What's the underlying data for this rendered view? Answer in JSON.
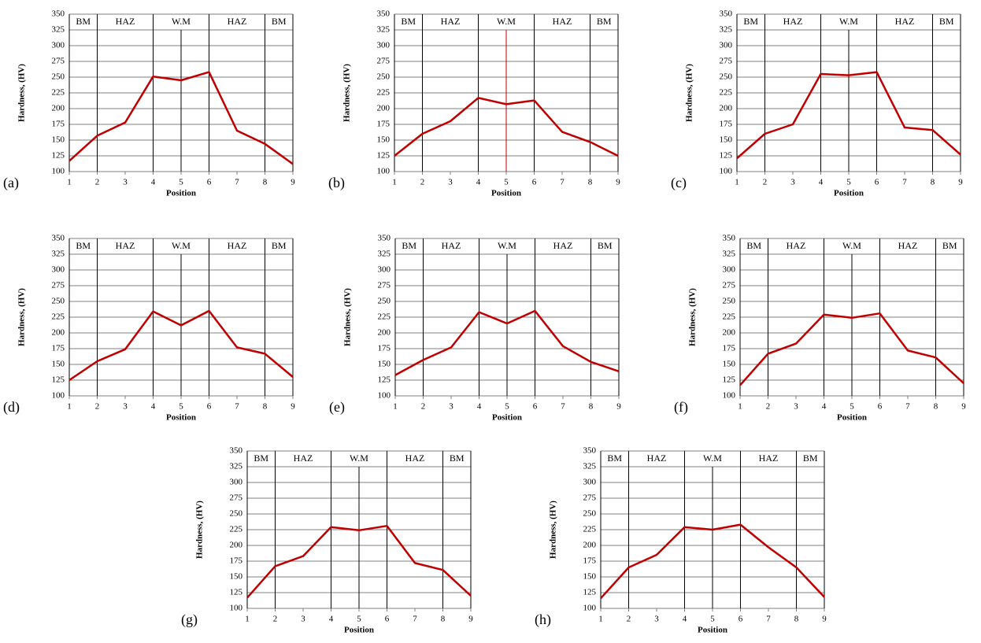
{
  "chart_data": [
    {
      "type": "line",
      "panel_label": "(a)",
      "x": [
        1,
        2,
        3,
        4,
        5,
        6,
        7,
        8,
        9
      ],
      "xlim": [
        1,
        9
      ],
      "xticks": [
        1,
        2,
        3,
        4,
        5,
        6,
        7,
        8,
        9
      ],
      "ylim": [
        100,
        350
      ],
      "yticks": [
        100,
        125,
        150,
        175,
        200,
        225,
        250,
        275,
        300,
        325,
        350
      ],
      "grid": true,
      "x_label": "Position",
      "y_label": "Hardness, (HV)",
      "series": [
        {
          "color": "#c00000",
          "values": [
            117,
            157,
            178,
            251,
            245,
            258,
            165,
            144,
            112
          ]
        }
      ],
      "regions": [
        {
          "label": "BM",
          "from": 1,
          "to": 2
        },
        {
          "label": "HAZ",
          "from": 2,
          "to": 4
        },
        {
          "label": "W.M",
          "from": 4,
          "to": 6
        },
        {
          "label": "HAZ",
          "from": 6,
          "to": 8
        },
        {
          "label": "BM",
          "from": 8,
          "to": 9
        }
      ],
      "center_line": {
        "x": 5,
        "color": "#000000"
      }
    },
    {
      "type": "line",
      "panel_label": "(b)",
      "x": [
        1,
        2,
        3,
        4,
        5,
        6,
        7,
        8,
        9
      ],
      "xlim": [
        1,
        9
      ],
      "xticks": [
        1,
        2,
        3,
        4,
        5,
        6,
        7,
        8,
        9
      ],
      "ylim": [
        100,
        350
      ],
      "yticks": [
        100,
        125,
        150,
        175,
        200,
        225,
        250,
        275,
        300,
        325,
        350
      ],
      "grid": true,
      "x_label": "Position",
      "y_label": "Hardness, (HV)",
      "series": [
        {
          "color": "#c00000",
          "values": [
            125,
            160,
            180,
            217,
            207,
            213,
            163,
            147,
            125
          ]
        }
      ],
      "regions": [
        {
          "label": "BM",
          "from": 1,
          "to": 2
        },
        {
          "label": "HAZ",
          "from": 2,
          "to": 4
        },
        {
          "label": "W.M",
          "from": 4,
          "to": 6
        },
        {
          "label": "HAZ",
          "from": 6,
          "to": 8
        },
        {
          "label": "BM",
          "from": 8,
          "to": 9
        }
      ],
      "center_line": {
        "x": 5,
        "color": "#c00000"
      }
    },
    {
      "type": "line",
      "panel_label": "(c)",
      "x": [
        1,
        2,
        3,
        4,
        5,
        6,
        7,
        8,
        9
      ],
      "xlim": [
        1,
        9
      ],
      "xticks": [
        1,
        2,
        3,
        4,
        5,
        6,
        7,
        8,
        9
      ],
      "ylim": [
        100,
        350
      ],
      "yticks": [
        100,
        125,
        150,
        175,
        200,
        225,
        250,
        275,
        300,
        325,
        350
      ],
      "grid": true,
      "x_label": "Position",
      "y_label": "Hardness, (HV)",
      "series": [
        {
          "color": "#c00000",
          "values": [
            121,
            160,
            175,
            255,
            253,
            258,
            170,
            166,
            127
          ]
        }
      ],
      "regions": [
        {
          "label": "BM",
          "from": 1,
          "to": 2
        },
        {
          "label": "HAZ",
          "from": 2,
          "to": 4
        },
        {
          "label": "W.M",
          "from": 4,
          "to": 6
        },
        {
          "label": "HAZ",
          "from": 6,
          "to": 8
        },
        {
          "label": "BM",
          "from": 8,
          "to": 9
        }
      ],
      "center_line": {
        "x": 5,
        "color": "#000000"
      }
    },
    {
      "type": "line",
      "panel_label": "(d)",
      "x": [
        1,
        2,
        3,
        4,
        5,
        6,
        7,
        8,
        9
      ],
      "xlim": [
        1,
        9
      ],
      "xticks": [
        1,
        2,
        3,
        4,
        5,
        6,
        7,
        8,
        9
      ],
      "ylim": [
        100,
        350
      ],
      "yticks": [
        100,
        125,
        150,
        175,
        200,
        225,
        250,
        275,
        300,
        325,
        350
      ],
      "grid": true,
      "x_label": "Position",
      "y_label": "Hardness, (HV)",
      "series": [
        {
          "color": "#c00000",
          "values": [
            125,
            155,
            174,
            234,
            212,
            235,
            177,
            167,
            130
          ]
        }
      ],
      "regions": [
        {
          "label": "BM",
          "from": 1,
          "to": 2
        },
        {
          "label": "HAZ",
          "from": 2,
          "to": 4
        },
        {
          "label": "W.M",
          "from": 4,
          "to": 6
        },
        {
          "label": "HAZ",
          "from": 6,
          "to": 8
        },
        {
          "label": "BM",
          "from": 8,
          "to": 9
        }
      ],
      "center_line": {
        "x": 5,
        "color": "#000000"
      }
    },
    {
      "type": "line",
      "panel_label": "(e)",
      "x": [
        1,
        2,
        3,
        4,
        5,
        6,
        7,
        8,
        9
      ],
      "xlim": [
        1,
        9
      ],
      "xticks": [
        1,
        2,
        3,
        4,
        5,
        6,
        7,
        8,
        9
      ],
      "ylim": [
        100,
        350
      ],
      "yticks": [
        100,
        125,
        150,
        175,
        200,
        225,
        250,
        275,
        300,
        325,
        350
      ],
      "grid": true,
      "x_label": "Position",
      "y_label": "Hardness, (HV)",
      "series": [
        {
          "color": "#c00000",
          "values": [
            133,
            157,
            177,
            233,
            215,
            235,
            179,
            154,
            139
          ]
        }
      ],
      "regions": [
        {
          "label": "BM",
          "from": 1,
          "to": 2
        },
        {
          "label": "HAZ",
          "from": 2,
          "to": 4
        },
        {
          "label": "W.M",
          "from": 4,
          "to": 6
        },
        {
          "label": "HAZ",
          "from": 6,
          "to": 8
        },
        {
          "label": "BM",
          "from": 8,
          "to": 9
        }
      ],
      "center_line": {
        "x": 5,
        "color": "#000000"
      }
    },
    {
      "type": "line",
      "panel_label": "(f)",
      "x": [
        1,
        2,
        3,
        4,
        5,
        6,
        7,
        8,
        9
      ],
      "xlim": [
        1,
        9
      ],
      "xticks": [
        1,
        2,
        3,
        4,
        5,
        6,
        7,
        8,
        9
      ],
      "ylim": [
        100,
        350
      ],
      "yticks": [
        100,
        125,
        150,
        175,
        200,
        225,
        250,
        275,
        300,
        325,
        350
      ],
      "grid": true,
      "x_label": "Position",
      "y_label": "Hardness, (HV)",
      "series": [
        {
          "color": "#c00000",
          "values": [
            117,
            167,
            183,
            229,
            224,
            231,
            172,
            161,
            120
          ]
        }
      ],
      "regions": [
        {
          "label": "BM",
          "from": 1,
          "to": 2
        },
        {
          "label": "HAZ",
          "from": 2,
          "to": 4
        },
        {
          "label": "W.M",
          "from": 4,
          "to": 6
        },
        {
          "label": "HAZ",
          "from": 6,
          "to": 8
        },
        {
          "label": "BM",
          "from": 8,
          "to": 9
        }
      ],
      "center_line": {
        "x": 5,
        "color": "#000000"
      }
    },
    {
      "type": "line",
      "panel_label": "(g)",
      "x": [
        1,
        2,
        3,
        4,
        5,
        6,
        7,
        8,
        9
      ],
      "xlim": [
        1,
        9
      ],
      "xticks": [
        1,
        2,
        3,
        4,
        5,
        6,
        7,
        8,
        9
      ],
      "ylim": [
        100,
        350
      ],
      "yticks": [
        100,
        125,
        150,
        175,
        200,
        225,
        250,
        275,
        300,
        325,
        350
      ],
      "grid": true,
      "x_label": "Position",
      "y_label": "Hardness, (HV)",
      "series": [
        {
          "color": "#c00000",
          "values": [
            117,
            167,
            183,
            229,
            224,
            231,
            172,
            161,
            120
          ]
        }
      ],
      "regions": [
        {
          "label": "BM",
          "from": 1,
          "to": 2
        },
        {
          "label": "HAZ",
          "from": 2,
          "to": 4
        },
        {
          "label": "W.M",
          "from": 4,
          "to": 6
        },
        {
          "label": "HAZ",
          "from": 6,
          "to": 8
        },
        {
          "label": "BM",
          "from": 8,
          "to": 9
        }
      ],
      "center_line": {
        "x": 5,
        "color": "#000000"
      }
    },
    {
      "type": "line",
      "panel_label": "(h)",
      "x": [
        1,
        2,
        3,
        4,
        5,
        6,
        7,
        8,
        9
      ],
      "xlim": [
        1,
        9
      ],
      "xticks": [
        1,
        2,
        3,
        4,
        5,
        6,
        7,
        8,
        9
      ],
      "ylim": [
        100,
        350
      ],
      "yticks": [
        100,
        125,
        150,
        175,
        200,
        225,
        250,
        275,
        300,
        325,
        350
      ],
      "grid": true,
      "x_label": "Position",
      "y_label": "Hardness, (HV)",
      "series": [
        {
          "color": "#c00000",
          "values": [
            116,
            165,
            185,
            229,
            225,
            233,
            197,
            165,
            118
          ]
        }
      ],
      "regions": [
        {
          "label": "BM",
          "from": 1,
          "to": 2
        },
        {
          "label": "HAZ",
          "from": 2,
          "to": 4
        },
        {
          "label": "W.M",
          "from": 4,
          "to": 6
        },
        {
          "label": "HAZ",
          "from": 6,
          "to": 8
        },
        {
          "label": "BM",
          "from": 8,
          "to": 9
        }
      ],
      "center_line": {
        "x": 5,
        "color": "#000000"
      }
    }
  ]
}
